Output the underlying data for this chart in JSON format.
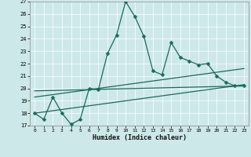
{
  "xlabel": "Humidex (Indice chaleur)",
  "xlim": [
    -0.5,
    23.5
  ],
  "ylim": [
    17,
    27
  ],
  "yticks": [
    17,
    18,
    19,
    20,
    21,
    22,
    23,
    24,
    25,
    26,
    27
  ],
  "xticks": [
    0,
    1,
    2,
    3,
    4,
    5,
    6,
    7,
    8,
    9,
    10,
    11,
    12,
    13,
    14,
    15,
    16,
    17,
    18,
    19,
    20,
    21,
    22,
    23
  ],
  "bg_color": "#cde8e8",
  "line_color": "#1a6b5a",
  "grid_color": "#ffffff",
  "line1_x": [
    0,
    1,
    2,
    3,
    4,
    5,
    6,
    7,
    8,
    9,
    10,
    11,
    12,
    13,
    14,
    15,
    16,
    17,
    18,
    19,
    20,
    21,
    22,
    23
  ],
  "line1_y": [
    18.0,
    17.5,
    19.3,
    18.0,
    17.1,
    17.5,
    20.0,
    19.9,
    22.8,
    24.3,
    27.0,
    25.8,
    24.2,
    21.4,
    21.1,
    23.7,
    22.5,
    22.2,
    21.9,
    22.0,
    21.0,
    20.5,
    20.2,
    20.2
  ],
  "line2_x": [
    0,
    23
  ],
  "line2_y": [
    18.0,
    20.3
  ],
  "line3_x": [
    0,
    23
  ],
  "line3_y": [
    19.3,
    21.6
  ],
  "line4_x": [
    0,
    23
  ],
  "line4_y": [
    19.8,
    20.2
  ],
  "markersize": 2.5,
  "linewidth": 0.9
}
